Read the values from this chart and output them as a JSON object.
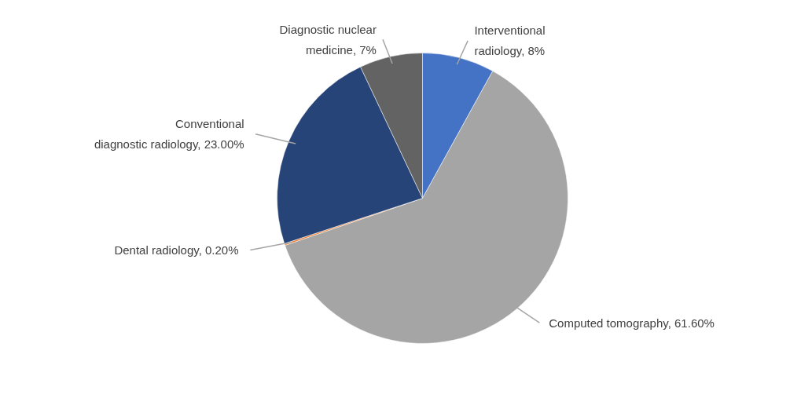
{
  "chart_data": {
    "type": "pie",
    "categories": [
      "Interventional radiology",
      "Computed tomography",
      "Dental radiology",
      "Conventional diagnostic radiology",
      "Diagnostic nuclear medicine"
    ],
    "values": [
      8,
      61.6,
      0.2,
      23.0,
      7
    ],
    "value_labels": [
      "8%",
      "61.60%",
      "0.20%",
      "23.00%",
      "7%"
    ],
    "colors": [
      "#4472c4",
      "#a5a5a5",
      "#ed7d31",
      "#264478",
      "#636363"
    ]
  }
}
